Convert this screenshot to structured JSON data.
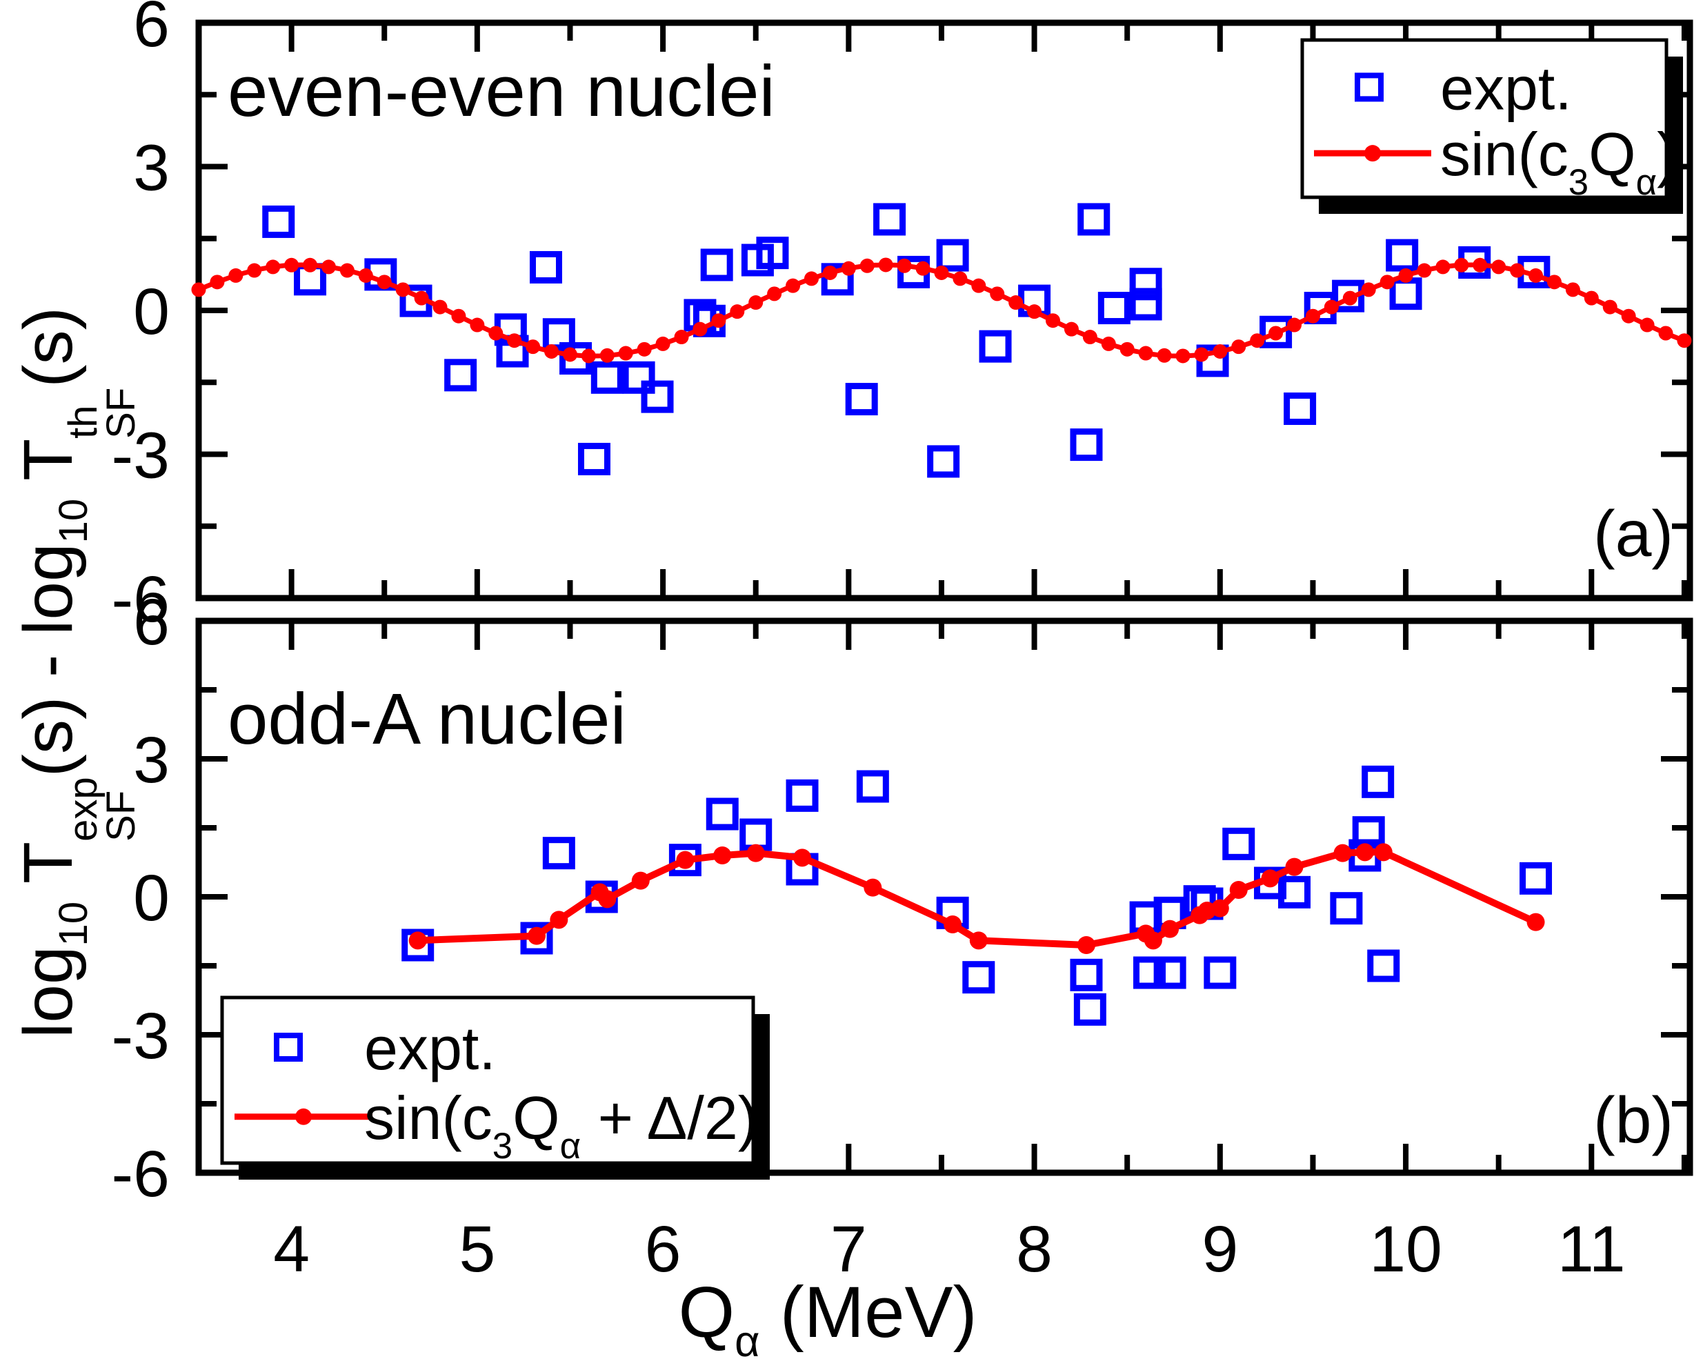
{
  "chart_data": {
    "type": "scatter",
    "colors": {
      "expt": "#0000ff",
      "fit": "#ff0000",
      "axis": "#000000",
      "background": "#ffffff"
    },
    "x_axis": {
      "min": 3.5,
      "max": 11.53,
      "major_ticks": [
        4,
        5,
        6,
        7,
        8,
        9,
        10,
        11
      ],
      "minor_step": 0.5,
      "label_parts": [
        {
          "k": "n",
          "t": "Q"
        },
        {
          "k": "sub",
          "t": "α"
        },
        {
          "k": "n",
          "t": " (MeV)"
        }
      ]
    },
    "y_axis": {
      "min": -6,
      "max": 6,
      "major_ticks": [
        6,
        3,
        0,
        -3,
        -6
      ],
      "minor_step": 1.5,
      "label_parts": [
        {
          "k": "n",
          "t": "log"
        },
        {
          "k": "sub",
          "t": "10"
        },
        {
          "k": "n",
          "t": " T"
        },
        {
          "k": "stack",
          "top": "exp",
          "bot": "SF"
        },
        {
          "k": "n",
          "t": "(s) - log"
        },
        {
          "k": "sub",
          "t": "10"
        },
        {
          "k": "n",
          "t": " T"
        },
        {
          "k": "stack",
          "top": "th",
          "bot": "SF"
        },
        {
          "k": "n",
          "t": "(s)"
        }
      ]
    },
    "panels": [
      {
        "id": "a",
        "title": "even-even nuclei",
        "tag": "(a)",
        "legend": {
          "items": [
            {
              "marker": "open-square",
              "label": "expt."
            },
            {
              "marker": "line-dot",
              "label_parts": [
                {
                  "k": "n",
                  "t": "sin(c"
                },
                {
                  "k": "sub",
                  "t": "3"
                },
                {
                  "k": "n",
                  "t": "Q"
                },
                {
                  "k": "sub",
                  "t": "α"
                },
                {
                  "k": "n",
                  "t": ")"
                }
              ]
            }
          ]
        },
        "series": {
          "expt_points": [
            [
              3.93,
              1.85
            ],
            [
              4.1,
              0.65
            ],
            [
              4.48,
              0.75
            ],
            [
              4.67,
              0.2
            ],
            [
              4.91,
              -1.35
            ],
            [
              5.18,
              -0.4
            ],
            [
              5.19,
              -0.85
            ],
            [
              5.37,
              0.9
            ],
            [
              5.44,
              -0.5
            ],
            [
              5.53,
              -1.0
            ],
            [
              5.63,
              -3.1
            ],
            [
              5.7,
              -1.4
            ],
            [
              5.87,
              -1.4
            ],
            [
              5.97,
              -1.8
            ],
            [
              6.2,
              -0.1
            ],
            [
              6.25,
              -0.22
            ],
            [
              6.29,
              0.95
            ],
            [
              6.51,
              1.05
            ],
            [
              6.59,
              1.2
            ],
            [
              6.94,
              0.65
            ],
            [
              7.07,
              -1.85
            ],
            [
              7.22,
              1.9
            ],
            [
              7.35,
              0.8
            ],
            [
              7.51,
              -3.15
            ],
            [
              7.56,
              1.15
            ],
            [
              7.79,
              -0.75
            ],
            [
              8.0,
              0.2
            ],
            [
              8.28,
              -2.8
            ],
            [
              8.32,
              1.9
            ],
            [
              8.43,
              0.05
            ],
            [
              8.6,
              0.55
            ],
            [
              8.6,
              0.13
            ],
            [
              8.96,
              -1.05
            ],
            [
              9.3,
              -0.45
            ],
            [
              9.43,
              -2.05
            ],
            [
              9.54,
              0.05
            ],
            [
              9.69,
              0.3
            ],
            [
              9.98,
              1.15
            ],
            [
              10.0,
              0.35
            ],
            [
              10.37,
              1.0
            ],
            [
              10.69,
              0.8
            ]
          ],
          "fit": {
            "kind": "cosine",
            "amplitude": 0.95,
            "period": 3.15,
            "peak_q": 4.05,
            "q_start": 3.5,
            "q_end": 11.53,
            "marker_step": 0.1
          }
        }
      },
      {
        "id": "b",
        "title": "odd-A nuclei",
        "tag": "(b)",
        "legend": {
          "items": [
            {
              "marker": "open-square",
              "label": "expt."
            },
            {
              "marker": "line-dot",
              "label_parts": [
                {
                  "k": "n",
                  "t": "sin(c"
                },
                {
                  "k": "sub",
                  "t": "3"
                },
                {
                  "k": "n",
                  "t": "Q"
                },
                {
                  "k": "sub",
                  "t": "α"
                },
                {
                  "k": "n",
                  "t": " + Δ/2)"
                }
              ]
            }
          ]
        },
        "series": {
          "expt_points": [
            [
              4.68,
              -1.05
            ],
            [
              5.32,
              -0.9
            ],
            [
              5.44,
              0.95
            ],
            [
              5.67,
              0.0
            ],
            [
              6.12,
              0.8
            ],
            [
              6.32,
              1.8
            ],
            [
              6.5,
              1.35
            ],
            [
              6.75,
              2.2
            ],
            [
              6.75,
              0.6
            ],
            [
              7.13,
              2.4
            ],
            [
              7.56,
              -0.35
            ],
            [
              7.7,
              -1.75
            ],
            [
              8.28,
              -1.7
            ],
            [
              8.3,
              -2.45
            ],
            [
              8.6,
              -0.45
            ],
            [
              8.62,
              -1.65
            ],
            [
              8.73,
              -1.65
            ],
            [
              8.73,
              -0.35
            ],
            [
              8.89,
              -0.1
            ],
            [
              8.93,
              -0.15
            ],
            [
              9.0,
              -1.65
            ],
            [
              9.1,
              1.15
            ],
            [
              9.27,
              0.3
            ],
            [
              9.4,
              0.1
            ],
            [
              9.68,
              -0.25
            ],
            [
              9.78,
              0.9
            ],
            [
              9.8,
              1.4
            ],
            [
              9.85,
              2.5
            ],
            [
              9.88,
              -1.5
            ],
            [
              10.7,
              0.4
            ]
          ],
          "fit": {
            "kind": "polyline",
            "points": [
              [
                4.68,
                -0.95
              ],
              [
                5.32,
                -0.85
              ],
              [
                5.44,
                -0.5
              ],
              [
                5.66,
                0.1
              ],
              [
                5.7,
                -0.05
              ],
              [
                5.88,
                0.35
              ],
              [
                6.12,
                0.8
              ],
              [
                6.32,
                0.9
              ],
              [
                6.5,
                0.95
              ],
              [
                6.75,
                0.85
              ],
              [
                7.13,
                0.2
              ],
              [
                7.56,
                -0.6
              ],
              [
                7.7,
                -0.95
              ],
              [
                8.28,
                -1.05
              ],
              [
                8.6,
                -0.8
              ],
              [
                8.64,
                -0.95
              ],
              [
                8.73,
                -0.7
              ],
              [
                8.89,
                -0.4
              ],
              [
                8.93,
                -0.3
              ],
              [
                9.0,
                -0.25
              ],
              [
                9.1,
                0.15
              ],
              [
                9.27,
                0.4
              ],
              [
                9.4,
                0.65
              ],
              [
                9.66,
                0.95
              ],
              [
                9.78,
                0.97
              ],
              [
                9.88,
                0.97
              ],
              [
                10.7,
                -0.55
              ]
            ]
          }
        }
      }
    ]
  }
}
